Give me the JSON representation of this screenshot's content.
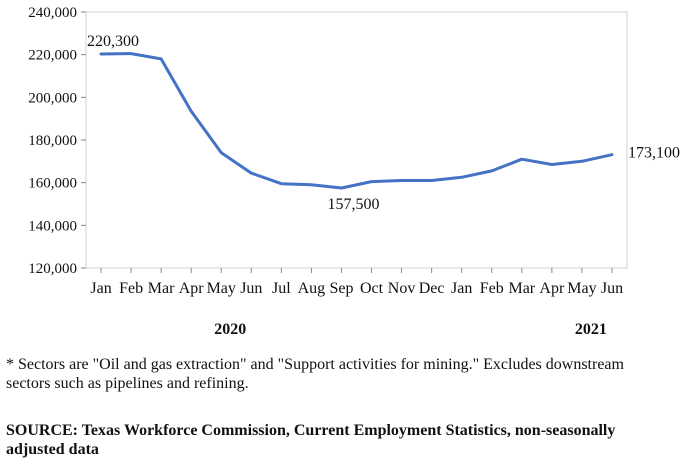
{
  "chart_data": {
    "type": "line",
    "color": "#4472C4",
    "y_ticks": [
      "120,000",
      "140,000",
      "160,000",
      "180,000",
      "200,000",
      "220,000",
      "240,000"
    ],
    "ylim": [
      120000,
      240000
    ],
    "categories": [
      "Jan",
      "Feb",
      "Mar",
      "Apr",
      "May",
      "Jun",
      "Jul",
      "Aug",
      "Sep",
      "Oct",
      "Nov",
      "Dec",
      "Jan",
      "Feb",
      "Mar",
      "Apr",
      "May",
      "Jun"
    ],
    "values": [
      220300,
      220500,
      218000,
      193500,
      174000,
      164500,
      159500,
      159000,
      157500,
      160500,
      161000,
      161000,
      162500,
      165500,
      171000,
      168500,
      170000,
      173100
    ],
    "year_labels": [
      {
        "text": "2020",
        "at_index": 4.3
      },
      {
        "text": "2021",
        "at_index": 16.3
      }
    ],
    "annotations": [
      {
        "text": "220,300",
        "index": 0,
        "placement": "above"
      },
      {
        "text": "157,500",
        "index": 8,
        "placement": "below"
      },
      {
        "text": "173,100",
        "index": 17,
        "placement": "right"
      }
    ],
    "grid": false
  },
  "footnote": "* Sectors are \"Oil and gas extraction\" and \"Support activities for mining.\"  Excludes downstream sectors such as pipelines and refining.",
  "source": "SOURCE: Texas Workforce Commission, Current Employment Statistics, non-seasonally adjusted data"
}
